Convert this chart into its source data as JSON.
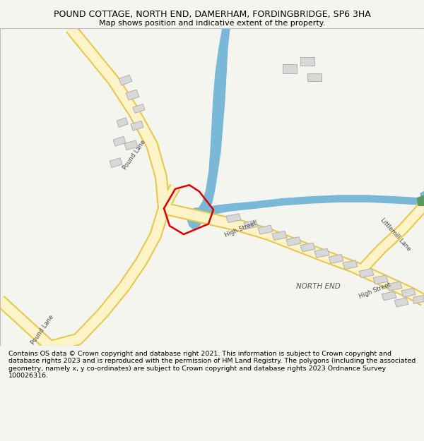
{
  "title_line1": "POUND COTTAGE, NORTH END, DAMERHAM, FORDINGBRIDGE, SP6 3HA",
  "title_line2": "Map shows position and indicative extent of the property.",
  "background_color": "#f5f5f0",
  "map_bg": "#ffffff",
  "road_fill": "#fdf3c8",
  "road_edge_color": "#e8c84a",
  "water_color": "#7ab8d8",
  "building_color": "#d8d8d8",
  "building_edge": "#b0b0b0",
  "plot_line_color": "#dd0000",
  "green_color": "#5a9a5a",
  "footer_text": "Contains OS data © Crown copyright and database right 2021. This information is subject to Crown copyright and database rights 2023 and is reproduced with the permission of HM Land Registry. The polygons (including the associated geometry, namely x, y co-ordinates) are subject to Crown copyright and database rights 2023 Ordnance Survey 100026316."
}
